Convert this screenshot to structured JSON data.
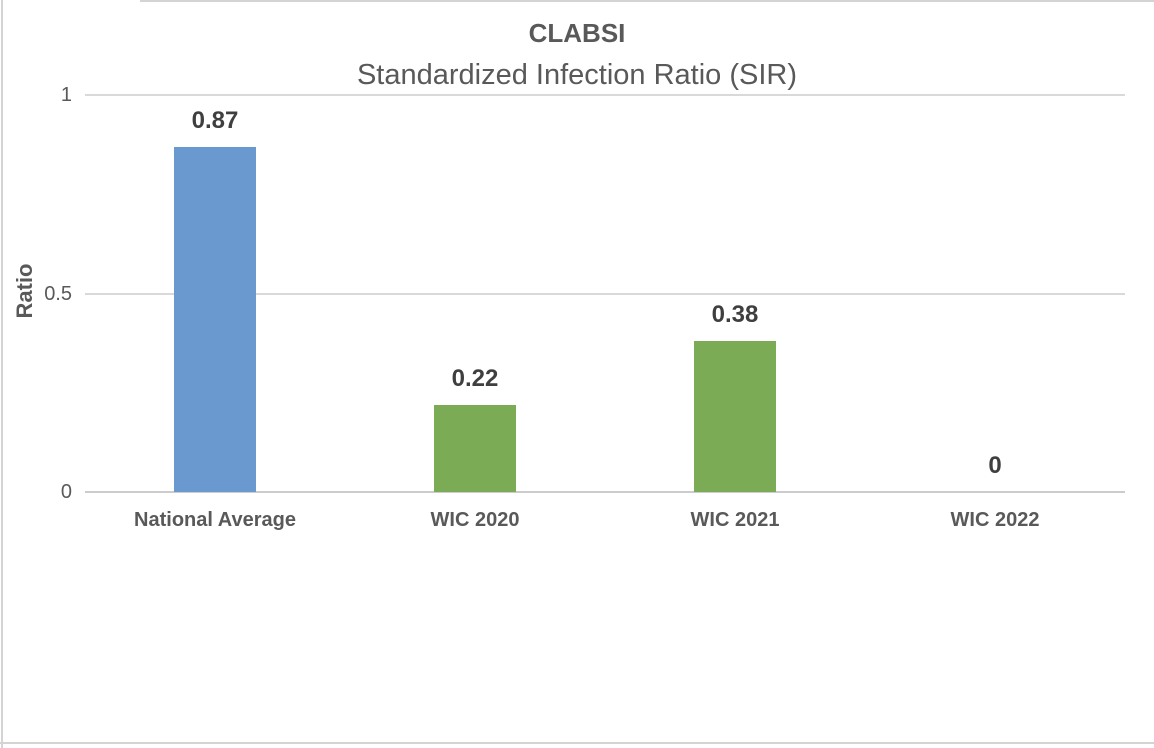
{
  "chart_data": {
    "type": "bar",
    "title": "CLABSI",
    "subtitle": "Standardized Infection Ratio (SIR)",
    "ylabel": "Ratio",
    "xlabel": "",
    "categories": [
      "National Average",
      "WIC 2020",
      "WIC 2021",
      "WIC 2022"
    ],
    "values": [
      0.87,
      0.22,
      0.38,
      0
    ],
    "data_labels": [
      "0.87",
      "0.22",
      "0.38",
      "0"
    ],
    "bar_colors": [
      "#6a99d0",
      "#7cab55",
      "#7cab55",
      "#7cab55"
    ],
    "ylim": [
      0,
      1
    ],
    "yticks": [
      {
        "value": 0,
        "label": "0"
      },
      {
        "value": 0.5,
        "label": "0.5"
      },
      {
        "value": 1,
        "label": "1"
      }
    ],
    "grid": true,
    "legend": "none",
    "colors": {
      "national_average_bar": "#6a99d0",
      "wic_bar": "#7cab55",
      "gridline": "#d9d9d9",
      "text": "#595959",
      "data_label_text": "#3f3f3f"
    }
  }
}
